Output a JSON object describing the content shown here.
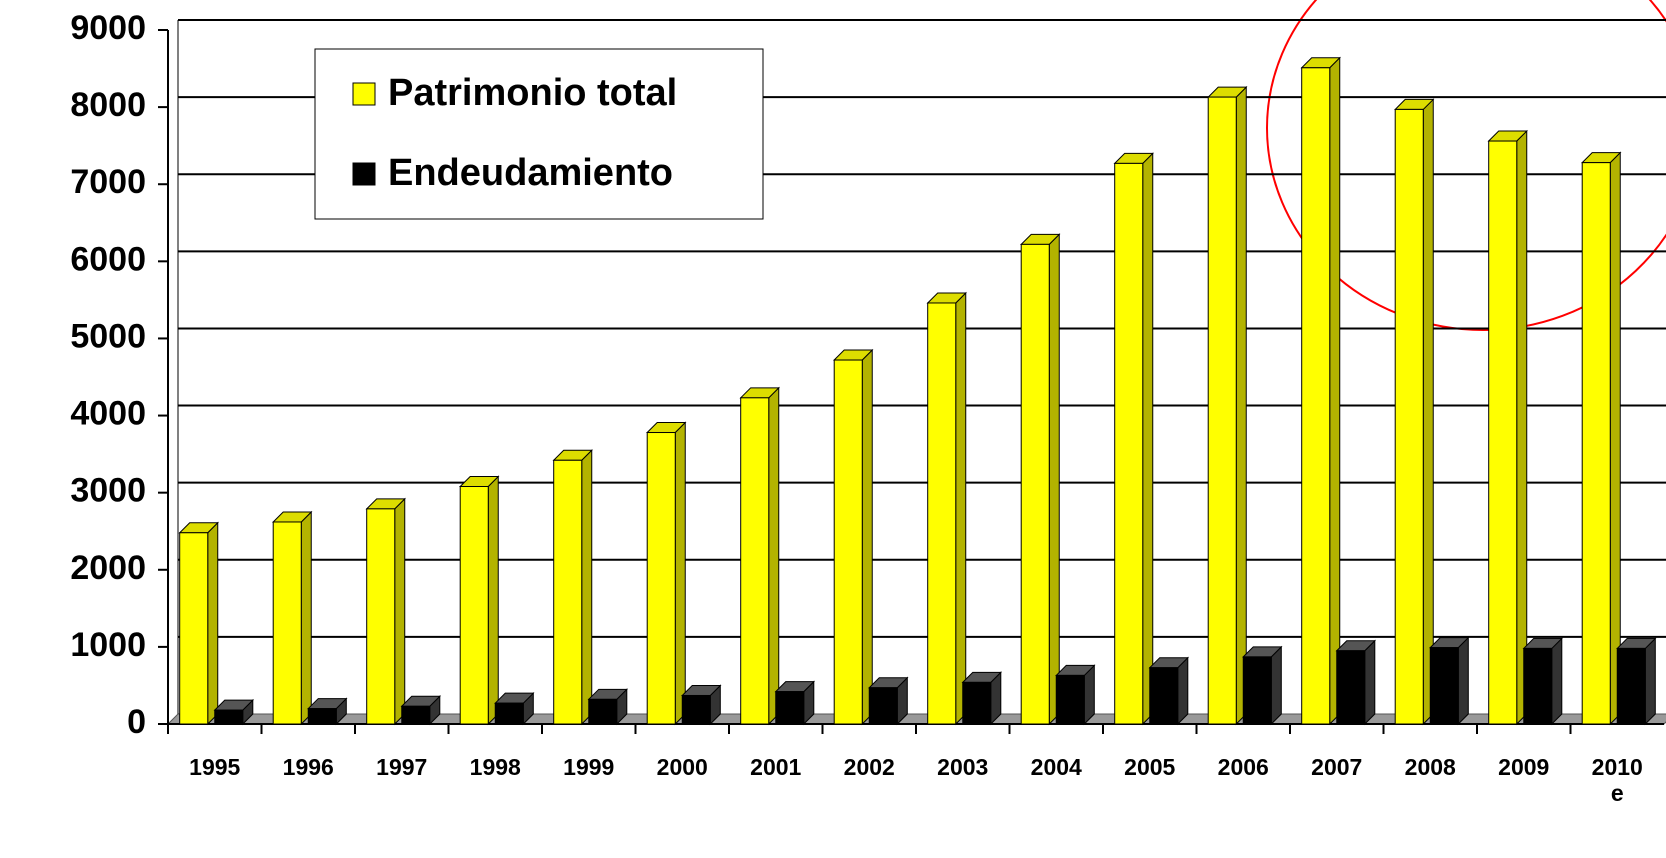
{
  "chart_data": {
    "type": "bar3d",
    "categories": [
      "1995",
      "1996",
      "1997",
      "1998",
      "1999",
      "2000",
      "2001",
      "2002",
      "2003",
      "2004",
      "2005",
      "2006",
      "2007",
      "2008",
      "2009",
      "2010\ne"
    ],
    "series": [
      {
        "name": "Patrimonio total",
        "color": "#ffff00",
        "values": [
          2480,
          2620,
          2790,
          3080,
          3420,
          3780,
          4230,
          4720,
          5460,
          6220,
          7270,
          8130,
          8510,
          7970,
          7560,
          7280
        ]
      },
      {
        "name": "Endeudamiento",
        "color": "#000000",
        "values": [
          180,
          200,
          230,
          270,
          320,
          370,
          420,
          470,
          540,
          630,
          730,
          870,
          950,
          990,
          980,
          980
        ]
      }
    ],
    "ylim": [
      0,
      9000
    ],
    "yticks": [
      0,
      1000,
      2000,
      3000,
      4000,
      5000,
      6000,
      7000,
      8000,
      9000
    ],
    "grid": true,
    "legend": "top-left"
  }
}
